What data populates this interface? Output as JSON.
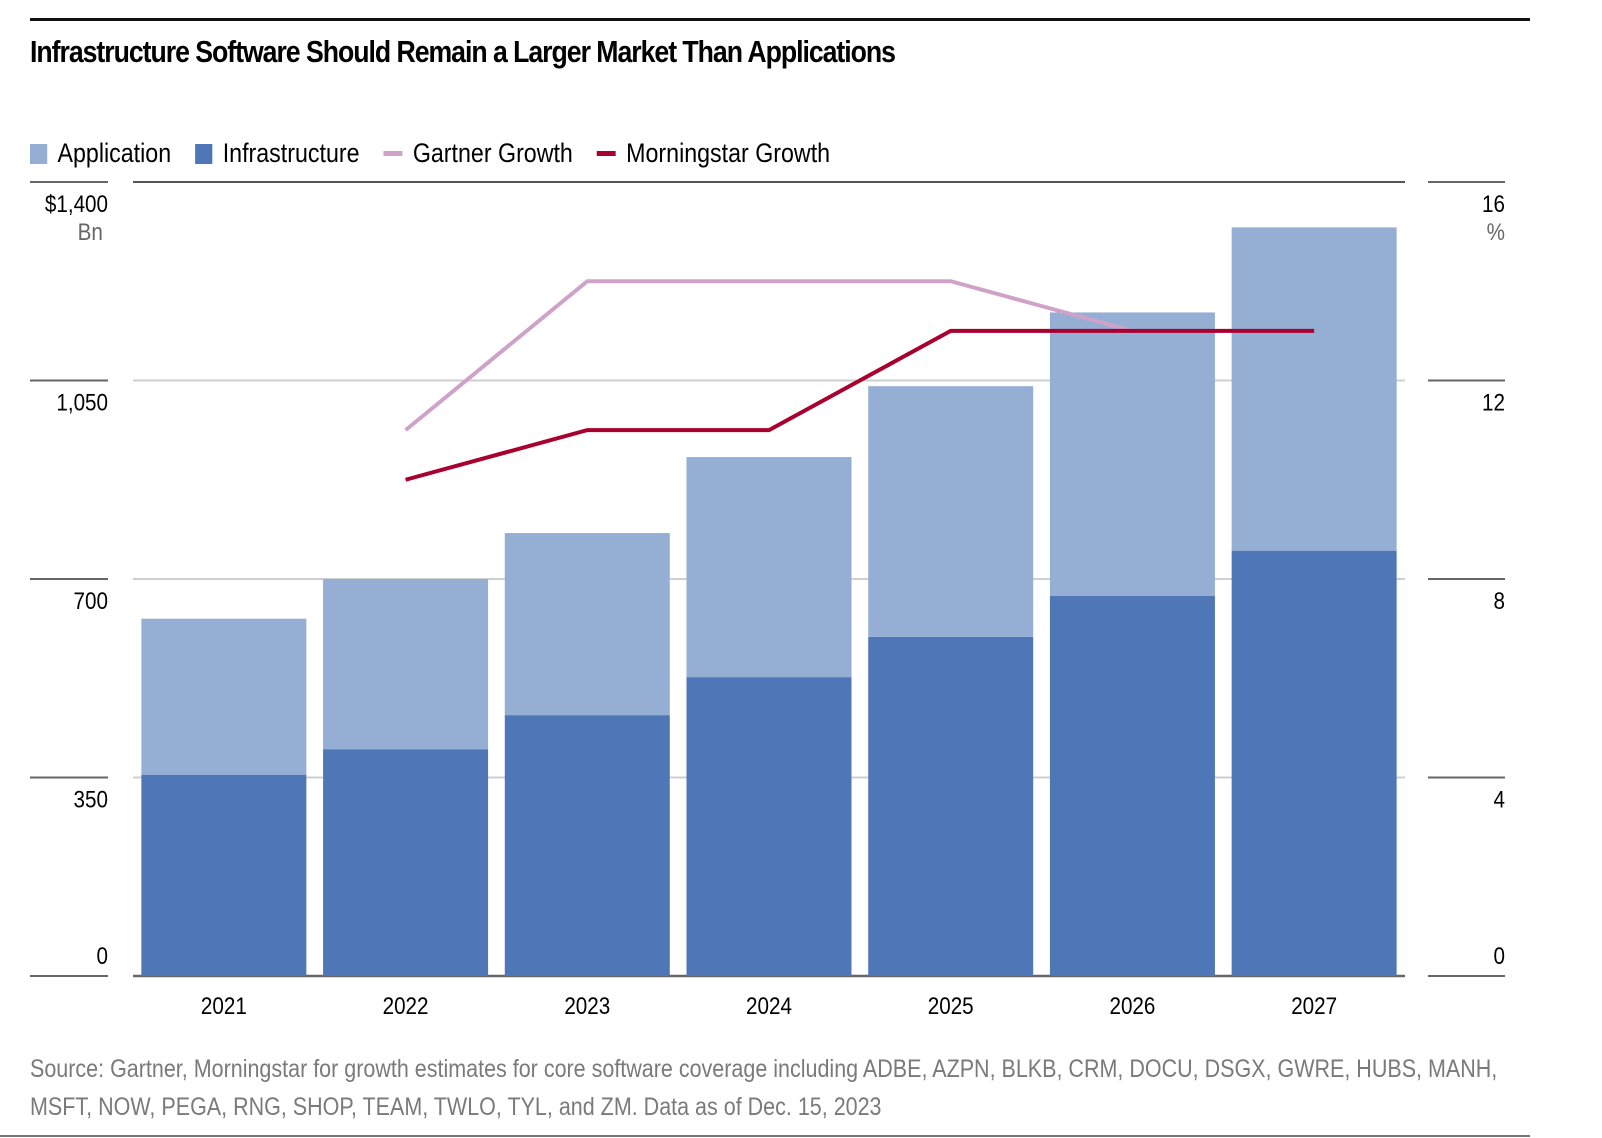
{
  "header": {
    "title": "Infrastructure Software Should Remain a Larger Market Than Applications"
  },
  "legend": [
    {
      "label": "Application",
      "kind": "box",
      "color": "#95afd4"
    },
    {
      "label": "Infrastructure",
      "kind": "box",
      "color": "#4f77b7"
    },
    {
      "label": "Gartner Growth",
      "kind": "line",
      "color": "#cfa3c8"
    },
    {
      "label": "Morningstar Growth",
      "kind": "line",
      "color": "#a8002f"
    }
  ],
  "footer": {
    "source": "Source:  Gartner, Morningstar for growth estimates for core software coverage including ADBE, AZPN, BLKB, CRM, DOCU, DSGX, GWRE, HUBS, MANH, MSFT, NOW, PEGA, RNG, SHOP, TEAM, TWLO, TYL, and ZM. Data as of Dec. 15, 2023"
  },
  "chart_data": {
    "type": "bar",
    "stacked": true,
    "title": "Infrastructure Software Should Remain a Larger Market Than Applications",
    "categories": [
      "2021",
      "2022",
      "2023",
      "2024",
      "2025",
      "2026",
      "2027"
    ],
    "series": [
      {
        "name": "Infrastructure",
        "type": "bar",
        "axis": "left",
        "color": "#4f77b7",
        "values": [
          355,
          400,
          460,
          527,
          598,
          670,
          750
        ]
      },
      {
        "name": "Application",
        "type": "bar",
        "axis": "left",
        "color": "#95afd4",
        "values": [
          275,
          300,
          321,
          388,
          442,
          500,
          570
        ]
      },
      {
        "name": "Gartner Growth",
        "type": "line",
        "axis": "right",
        "color": "#cfa3c8",
        "values": [
          null,
          11.0,
          14.0,
          14.0,
          14.0,
          13.0,
          null
        ]
      },
      {
        "name": "Morningstar Growth",
        "type": "line",
        "axis": "right",
        "color": "#a8002f",
        "values": [
          null,
          10.0,
          11.0,
          11.0,
          13.0,
          13.0,
          13.0
        ]
      }
    ],
    "totals": [
      630,
      700,
      781,
      915,
      1040,
      1170,
      1320
    ],
    "left_axis": {
      "label": "$ Bn",
      "unit_label": "Bn",
      "ylim": [
        0,
        1400
      ],
      "ticks": [
        0,
        350,
        700,
        1050,
        1400
      ],
      "tick_labels": [
        "0",
        "350",
        "700",
        "1,050",
        "$1,400"
      ]
    },
    "right_axis": {
      "label": "%",
      "unit_label": "%",
      "ylim": [
        0,
        16
      ],
      "ticks": [
        0,
        4,
        8,
        12,
        16
      ],
      "tick_labels": [
        "0",
        "4",
        "8",
        "12",
        "16"
      ]
    },
    "xlabel": "",
    "grid": true,
    "legend_position": "top-left"
  }
}
